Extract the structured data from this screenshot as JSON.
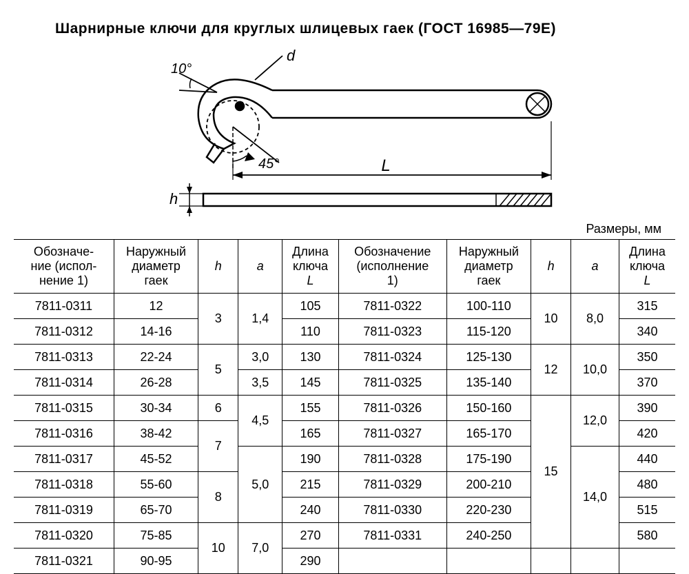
{
  "title": "Шарнирные ключи для круглых шлицевых гаек (ГОСТ 16985—79Е)",
  "units_label": "Размеры, мм",
  "diagram": {
    "angle10": "10°",
    "angle45": "45°",
    "label_d": "d",
    "label_L": "L",
    "label_h": "h",
    "stroke": "#000000",
    "stroke_width": 2.5,
    "hatch_color": "#000000"
  },
  "headers": {
    "col1": "Обозначе-\nние (испол-\nнение 1)",
    "col2": "Наружный\nдиаметр\nгаек",
    "col3": "h",
    "col4": "a",
    "col5": "Длина\nключа\nL",
    "col6": "Обозначение\n(исполнение\n1)",
    "col7": "Наружный\nдиаметр\nгаек",
    "col8": "h",
    "col9": "a",
    "col10": "Длина\nключа\nL"
  },
  "left_rows": [
    {
      "code": "7811-0311",
      "diam": "12",
      "L": "105"
    },
    {
      "code": "7811-0312",
      "diam": "14-16",
      "L": "110"
    },
    {
      "code": "7811-0313",
      "diam": "22-24",
      "L": "130"
    },
    {
      "code": "7811-0314",
      "diam": "26-28",
      "L": "145"
    },
    {
      "code": "7811-0315",
      "diam": "30-34",
      "L": "155"
    },
    {
      "code": "7811-0316",
      "diam": "38-42",
      "L": "165"
    },
    {
      "code": "7811-0317",
      "diam": "45-52",
      "L": "190"
    },
    {
      "code": "7811-0318",
      "diam": "55-60",
      "L": "215"
    },
    {
      "code": "7811-0319",
      "diam": "65-70",
      "L": "240"
    },
    {
      "code": "7811-0320",
      "diam": "75-85",
      "L": "270"
    },
    {
      "code": "7811-0321",
      "diam": "90-95",
      "L": "290"
    }
  ],
  "left_h": [
    {
      "val": "3",
      "span": 2
    },
    {
      "val": "5",
      "span": 2
    },
    {
      "val": "6",
      "span": 1
    },
    {
      "val": "7",
      "span": 2
    },
    {
      "val": "8",
      "span": 2
    },
    {
      "val": "10",
      "span": 2
    }
  ],
  "left_a": [
    {
      "val": "1,4",
      "span": 2
    },
    {
      "val": "3,0",
      "span": 1
    },
    {
      "val": "3,5",
      "span": 1
    },
    {
      "val": "4,5",
      "span": 2
    },
    {
      "val": "5,0",
      "span": 3
    },
    {
      "val": "7,0",
      "span": 2
    }
  ],
  "right_rows": [
    {
      "code": "7811-0322",
      "diam": "100-110",
      "L": "315"
    },
    {
      "code": "7811-0323",
      "diam": "115-120",
      "L": "340"
    },
    {
      "code": "7811-0324",
      "diam": "125-130",
      "L": "350"
    },
    {
      "code": "7811-0325",
      "diam": "135-140",
      "L": "370"
    },
    {
      "code": "7811-0326",
      "diam": "150-160",
      "L": "390"
    },
    {
      "code": "7811-0327",
      "diam": "165-170",
      "L": "420"
    },
    {
      "code": "7811-0328",
      "diam": "175-190",
      "L": "440"
    },
    {
      "code": "7811-0329",
      "diam": "200-210",
      "L": "480"
    },
    {
      "code": "7811-0330",
      "diam": "220-230",
      "L": "515"
    },
    {
      "code": "7811-0331",
      "diam": "240-250",
      "L": "580"
    }
  ],
  "right_h": [
    {
      "val": "10",
      "span": 2
    },
    {
      "val": "12",
      "span": 2
    },
    {
      "val": "15",
      "span": 6
    }
  ],
  "right_a": [
    {
      "val": "8,0",
      "span": 2
    },
    {
      "val": "10,0",
      "span": 2
    },
    {
      "val": "12,0",
      "span": 2
    },
    {
      "val": "14,0",
      "span": 4
    }
  ]
}
